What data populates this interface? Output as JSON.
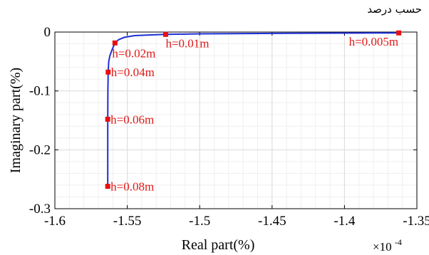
{
  "caption": "حسب درصد",
  "colors": {
    "curve": "#1f2fd8",
    "marker": "#e81010",
    "annotation": "#e01818",
    "axis": "#000000",
    "grid": "#dcdcdc",
    "minor_grid": "#efefef"
  },
  "chart_data": {
    "type": "line",
    "title": "",
    "xlabel": "Real part(%)",
    "ylabel": "Imaginary part(%)",
    "x_scale_label": "×10",
    "x_scale_exponent": "-4",
    "xlim": [
      -1.6,
      -1.35
    ],
    "ylim": [
      -0.3,
      0
    ],
    "x_ticks": [
      "-1.6",
      "-1.55",
      "-1.5",
      "-1.45",
      "-1.4",
      "-1.35"
    ],
    "y_ticks": [
      "0",
      "-0.1",
      "-0.2",
      "-0.3"
    ],
    "grid": true,
    "curve": {
      "x": [
        -1.5635,
        -1.5635,
        -1.5635,
        -1.5634,
        -1.5632,
        -1.5628,
        -1.562,
        -1.5605,
        -1.5585,
        -1.556,
        -1.552,
        -1.545,
        -1.535,
        -1.5235,
        -1.5,
        -1.47,
        -1.44,
        -1.41,
        -1.38,
        -1.3625
      ],
      "y": [
        -0.262,
        -0.2,
        -0.148,
        -0.1,
        -0.068,
        -0.05,
        -0.04,
        -0.03,
        -0.0185,
        -0.013,
        -0.009,
        -0.006,
        -0.005,
        -0.004,
        -0.003,
        -0.0025,
        -0.002,
        -0.0018,
        -0.0016,
        -0.0015
      ]
    },
    "markers": [
      {
        "label": "h=0.005m",
        "x": -1.3625,
        "y": -0.0015
      },
      {
        "label": "h=0.01m",
        "x": -1.5235,
        "y": -0.004
      },
      {
        "label": "h=0.02m",
        "x": -1.5585,
        "y": -0.0185
      },
      {
        "label": "h=0.04m",
        "x": -1.5632,
        "y": -0.068
      },
      {
        "label": "h=0.06m",
        "x": -1.5635,
        "y": -0.148
      },
      {
        "label": "h=0.08m",
        "x": -1.5635,
        "y": -0.262
      }
    ]
  }
}
